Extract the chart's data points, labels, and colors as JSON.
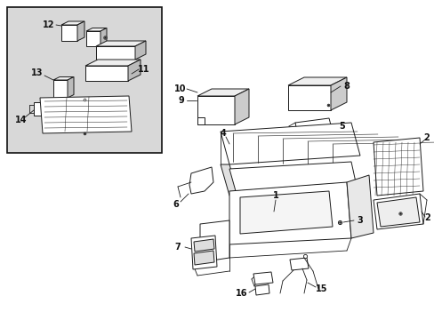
{
  "bg_color": "#ffffff",
  "line_color": "#1a1a1a",
  "inset_bg": "#d8d8d8",
  "fig_width": 4.89,
  "fig_height": 3.6,
  "dpi": 100
}
